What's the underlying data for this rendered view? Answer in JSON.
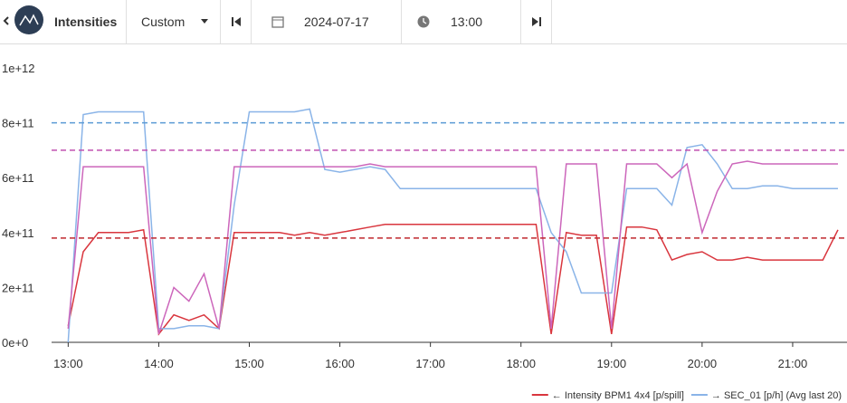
{
  "toolbar": {
    "title": "Intensities",
    "mode": "Custom",
    "date": "2024-07-17",
    "time": "13:00"
  },
  "chart_data": {
    "type": "line",
    "x": [
      "13:00",
      "13:10",
      "13:20",
      "13:30",
      "13:40",
      "13:50",
      "14:00",
      "14:10",
      "14:20",
      "14:30",
      "14:40",
      "14:50",
      "15:00",
      "15:10",
      "15:20",
      "15:30",
      "15:40",
      "15:50",
      "16:00",
      "16:10",
      "16:20",
      "16:30",
      "16:40",
      "16:50",
      "17:00",
      "17:10",
      "17:20",
      "17:30",
      "17:40",
      "17:50",
      "18:00",
      "18:10",
      "18:20",
      "18:30",
      "18:40",
      "18:50",
      "19:00",
      "19:10",
      "19:20",
      "19:30",
      "19:40",
      "19:50",
      "20:00",
      "20:10",
      "20:20",
      "20:30",
      "20:40",
      "20:50",
      "21:00",
      "21:10",
      "21:20",
      "21:30"
    ],
    "series": [
      {
        "name": "← Intensity BPM1 4x4 [p/spill]",
        "color": "#d9363e",
        "values": [
          60000000000.0,
          330000000000.0,
          400000000000.0,
          400000000000.0,
          400000000000.0,
          410000000000.0,
          30000000000.0,
          100000000000.0,
          80000000000.0,
          100000000000.0,
          50000000000.0,
          400000000000.0,
          400000000000.0,
          400000000000.0,
          400000000000.0,
          390000000000.0,
          400000000000.0,
          390000000000.0,
          400000000000.0,
          410000000000.0,
          420000000000.0,
          430000000000.0,
          430000000000.0,
          430000000000.0,
          430000000000.0,
          430000000000.0,
          430000000000.0,
          430000000000.0,
          430000000000.0,
          430000000000.0,
          430000000000.0,
          430000000000.0,
          30000000000.0,
          400000000000.0,
          390000000000.0,
          390000000000.0,
          30000000000.0,
          420000000000.0,
          420000000000.0,
          410000000000.0,
          300000000000.0,
          320000000000.0,
          330000000000.0,
          300000000000.0,
          300000000000.0,
          310000000000.0,
          300000000000.0,
          300000000000.0,
          300000000000.0,
          300000000000.0,
          300000000000.0,
          410000000000.0
        ]
      },
      {
        "name": "→ SEC_01 [p/h] (Avg last 20)",
        "color": "#8ab4e8",
        "values": [
          0,
          830000000000.0,
          840000000000.0,
          840000000000.0,
          840000000000.0,
          840000000000.0,
          50000000000.0,
          50000000000.0,
          60000000000.0,
          60000000000.0,
          50000000000.0,
          500000000000.0,
          840000000000.0,
          840000000000.0,
          840000000000.0,
          840000000000.0,
          850000000000.0,
          630000000000.0,
          620000000000.0,
          630000000000.0,
          640000000000.0,
          630000000000.0,
          560000000000.0,
          560000000000.0,
          560000000000.0,
          560000000000.0,
          560000000000.0,
          560000000000.0,
          560000000000.0,
          560000000000.0,
          560000000000.0,
          560000000000.0,
          400000000000.0,
          330000000000.0,
          180000000000.0,
          180000000000.0,
          180000000000.0,
          560000000000.0,
          560000000000.0,
          560000000000.0,
          500000000000.0,
          710000000000.0,
          720000000000.0,
          650000000000.0,
          560000000000.0,
          560000000000.0,
          570000000000.0,
          570000000000.0,
          560000000000.0,
          560000000000.0,
          560000000000.0,
          560000000000.0
        ]
      },
      {
        "color": "#cc66bb",
        "values": [
          50000000000.0,
          640000000000.0,
          640000000000.0,
          640000000000.0,
          640000000000.0,
          640000000000.0,
          30000000000.0,
          200000000000.0,
          150000000000.0,
          250000000000.0,
          50000000000.0,
          640000000000.0,
          640000000000.0,
          640000000000.0,
          640000000000.0,
          640000000000.0,
          640000000000.0,
          640000000000.0,
          640000000000.0,
          640000000000.0,
          650000000000.0,
          640000000000.0,
          640000000000.0,
          640000000000.0,
          640000000000.0,
          640000000000.0,
          640000000000.0,
          640000000000.0,
          640000000000.0,
          640000000000.0,
          640000000000.0,
          640000000000.0,
          50000000000.0,
          650000000000.0,
          650000000000.0,
          650000000000.0,
          50000000000.0,
          650000000000.0,
          650000000000.0,
          650000000000.0,
          600000000000.0,
          650000000000.0,
          400000000000.0,
          550000000000.0,
          650000000000.0,
          660000000000.0,
          650000000000.0,
          650000000000.0,
          650000000000.0,
          650000000000.0,
          650000000000.0,
          650000000000.0
        ]
      }
    ],
    "reference_lines": [
      {
        "value": 800000000000.0,
        "color": "#5b9bd5"
      },
      {
        "value": 700000000000.0,
        "color": "#c050b0"
      },
      {
        "value": 380000000000.0,
        "color": "#c0282e"
      }
    ],
    "xlim": [
      "12:49",
      "21:36"
    ],
    "xticks": [
      "13:00",
      "14:00",
      "15:00",
      "16:00",
      "17:00",
      "18:00",
      "19:00",
      "20:00",
      "21:00"
    ],
    "ylim": [
      0,
      1000000000000.0
    ],
    "yticks": [
      {
        "value": 0,
        "label": "0e+0"
      },
      {
        "value": 200000000000.0,
        "label": "2e+11"
      },
      {
        "value": 400000000000.0,
        "label": "4e+11"
      },
      {
        "value": 600000000000.0,
        "label": "6e+11"
      },
      {
        "value": 800000000000.0,
        "label": "8e+11"
      },
      {
        "value": 1000000000000.0,
        "label": "1e+12"
      }
    ],
    "legend": "bottom-right"
  }
}
